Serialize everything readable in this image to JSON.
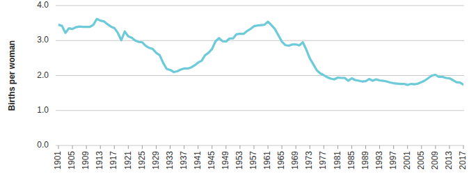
{
  "chart_data": {
    "type": "line",
    "y_label": "Births per woman",
    "color": "#6ccad9",
    "grid": true,
    "x": [
      1901,
      1902,
      1903,
      1904,
      1905,
      1906,
      1907,
      1908,
      1909,
      1910,
      1911,
      1912,
      1913,
      1914,
      1915,
      1916,
      1917,
      1918,
      1919,
      1920,
      1921,
      1922,
      1923,
      1924,
      1925,
      1926,
      1927,
      1928,
      1929,
      1930,
      1931,
      1932,
      1933,
      1934,
      1935,
      1936,
      1937,
      1938,
      1939,
      1940,
      1941,
      1942,
      1943,
      1944,
      1945,
      1946,
      1947,
      1948,
      1949,
      1950,
      1951,
      1952,
      1953,
      1954,
      1955,
      1956,
      1957,
      1958,
      1959,
      1960,
      1961,
      1962,
      1963,
      1964,
      1965,
      1966,
      1967,
      1968,
      1969,
      1970,
      1971,
      1972,
      1973,
      1974,
      1975,
      1976,
      1977,
      1978,
      1979,
      1980,
      1981,
      1982,
      1983,
      1984,
      1985,
      1986,
      1987,
      1988,
      1989,
      1990,
      1991,
      1992,
      1993,
      1994,
      1995,
      1996,
      1997,
      1998,
      1999,
      2000,
      2001,
      2002,
      2003,
      2004,
      2005,
      2006,
      2007,
      2008,
      2009,
      2010,
      2011,
      2012,
      2013,
      2014,
      2015,
      2016,
      2017
    ],
    "values": [
      3.45,
      3.42,
      3.22,
      3.35,
      3.33,
      3.38,
      3.4,
      3.39,
      3.39,
      3.39,
      3.45,
      3.62,
      3.57,
      3.55,
      3.47,
      3.4,
      3.36,
      3.22,
      3.01,
      3.26,
      3.12,
      3.08,
      3.0,
      2.96,
      2.95,
      2.85,
      2.79,
      2.76,
      2.65,
      2.58,
      2.36,
      2.19,
      2.16,
      2.1,
      2.12,
      2.17,
      2.2,
      2.2,
      2.23,
      2.29,
      2.37,
      2.42,
      2.58,
      2.65,
      2.76,
      2.98,
      3.07,
      2.98,
      2.97,
      3.06,
      3.06,
      3.18,
      3.19,
      3.19,
      3.27,
      3.33,
      3.41,
      3.43,
      3.44,
      3.45,
      3.54,
      3.44,
      3.33,
      3.15,
      2.97,
      2.87,
      2.85,
      2.89,
      2.89,
      2.86,
      2.95,
      2.74,
      2.49,
      2.32,
      2.15,
      2.06,
      2.01,
      1.95,
      1.91,
      1.89,
      1.94,
      1.93,
      1.93,
      1.85,
      1.92,
      1.87,
      1.85,
      1.83,
      1.84,
      1.9,
      1.85,
      1.89,
      1.86,
      1.85,
      1.83,
      1.8,
      1.78,
      1.77,
      1.76,
      1.76,
      1.73,
      1.76,
      1.75,
      1.77,
      1.81,
      1.86,
      1.93,
      2.0,
      2.02,
      1.96,
      1.96,
      1.93,
      1.92,
      1.87,
      1.81,
      1.8,
      1.74
    ],
    "xlim": [
      1901,
      2017
    ],
    "xticks": [
      1901,
      1905,
      1909,
      1913,
      1917,
      1921,
      1925,
      1929,
      1933,
      1937,
      1941,
      1945,
      1949,
      1953,
      1957,
      1961,
      1965,
      1969,
      1973,
      1977,
      1981,
      1985,
      1989,
      1993,
      1997,
      2001,
      2005,
      2009,
      2013,
      2017
    ],
    "ylim": [
      0,
      4
    ],
    "yticks": [
      {
        "value": 0,
        "label": "0.0"
      },
      {
        "value": 1,
        "label": "1.0"
      },
      {
        "value": 2,
        "label": "2.0"
      },
      {
        "value": 3,
        "label": "3.0"
      },
      {
        "value": 4,
        "label": "4.0"
      }
    ]
  }
}
